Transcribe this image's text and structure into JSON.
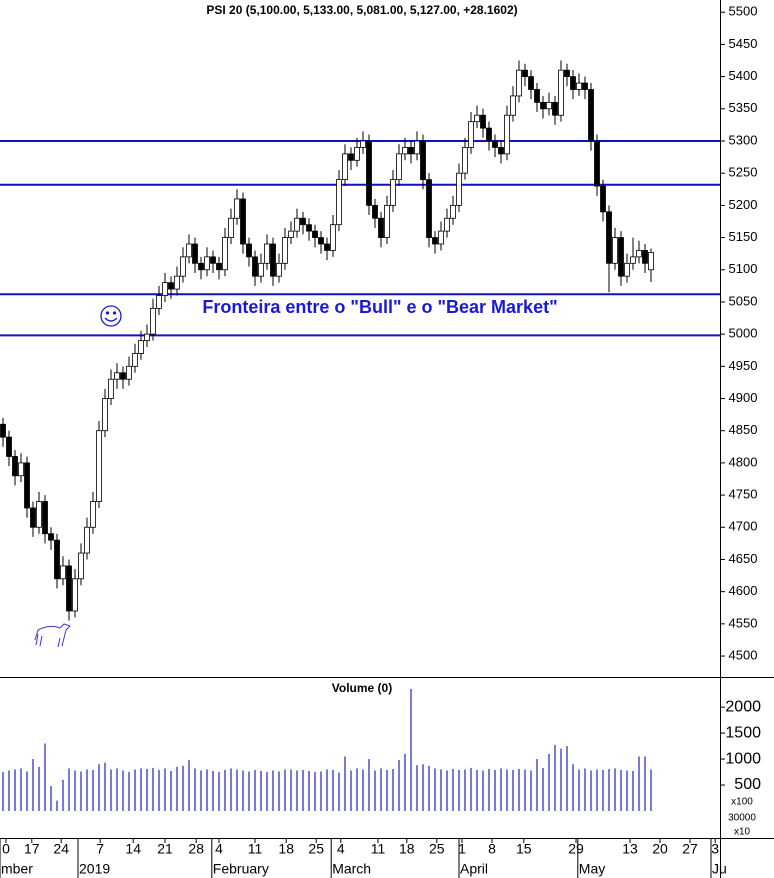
{
  "chart_data": {
    "type": "candlestick",
    "title": "PSI 20 (5,100.00, 5,133.00, 5,081.00, 5,127.00, +28.1602)",
    "volume_title": "Volume (0)",
    "annotation": "Fronteira entre o \"Bull\" e o \"Bear Market\"",
    "volume_unit": "x100",
    "axis_notes": [
      "30000",
      "x10"
    ],
    "ylim": [
      4469,
      5519
    ],
    "yticks": [
      4500,
      4550,
      4600,
      4650,
      4700,
      4750,
      4800,
      4850,
      4900,
      4950,
      5000,
      5050,
      5100,
      5150,
      5200,
      5250,
      5300,
      5350,
      5400,
      5450,
      5500
    ],
    "volume_ylim": [
      0,
      2580
    ],
    "volume_yticks": [
      500,
      1000,
      1500,
      2000
    ],
    "xlim": [
      -0.5,
      119.5
    ],
    "xticks": [
      {
        "value": 0.5,
        "label": "0"
      },
      {
        "value": 4.8,
        "label": "17"
      },
      {
        "value": 9.7,
        "label": "24"
      },
      {
        "value": 16.2,
        "label": "7"
      },
      {
        "value": 21.7,
        "label": "14"
      },
      {
        "value": 27,
        "label": "21"
      },
      {
        "value": 32.2,
        "label": "28"
      },
      {
        "value": 36,
        "label": "4"
      },
      {
        "value": 42,
        "label": "11"
      },
      {
        "value": 47.2,
        "label": "18"
      },
      {
        "value": 52.2,
        "label": "25"
      },
      {
        "value": 56.3,
        "label": "4"
      },
      {
        "value": 62.5,
        "label": "11"
      },
      {
        "value": 67.3,
        "label": "18"
      },
      {
        "value": 72.3,
        "label": "25"
      },
      {
        "value": 76.5,
        "label": "1"
      },
      {
        "value": 81.5,
        "label": "8"
      },
      {
        "value": 86.8,
        "label": "15"
      },
      {
        "value": 95.5,
        "label": "29"
      },
      {
        "value": 104.5,
        "label": "13"
      },
      {
        "value": 109.5,
        "label": "20"
      },
      {
        "value": 114.5,
        "label": "27"
      },
      {
        "value": 118.7,
        "label": "3"
      }
    ],
    "month_labels": [
      {
        "value": -0.5,
        "label": "mber"
      },
      {
        "value": 12.5,
        "label": "2019"
      },
      {
        "value": 34.8,
        "label": "February"
      },
      {
        "value": 54.7,
        "label": "March"
      },
      {
        "value": 76,
        "label": "April"
      },
      {
        "value": 95.8,
        "label": "May"
      },
      {
        "value": 118,
        "label": "Ju"
      }
    ],
    "hlines": [
      5300,
      5232,
      5062,
      4998
    ],
    "hline_color": "#1010c8",
    "up_color": "#ffffff",
    "down_color": "#000000",
    "volume_color": "#2020c0",
    "ohlc": [
      [
        4860,
        4870,
        4825,
        4840
      ],
      [
        4840,
        4850,
        4795,
        4810
      ],
      [
        4810,
        4820,
        4765,
        4780
      ],
      [
        4780,
        4815,
        4770,
        4800
      ],
      [
        4800,
        4810,
        4715,
        4730
      ],
      [
        4730,
        4740,
        4685,
        4700
      ],
      [
        4700,
        4755,
        4690,
        4740
      ],
      [
        4740,
        4750,
        4675,
        4690
      ],
      [
        4690,
        4700,
        4665,
        4680
      ],
      [
        4680,
        4690,
        4605,
        4620
      ],
      [
        4620,
        4655,
        4610,
        4640
      ],
      [
        4640,
        4650,
        4555,
        4570
      ],
      [
        4570,
        4635,
        4560,
        4620
      ],
      [
        4620,
        4675,
        4610,
        4660
      ],
      [
        4660,
        4715,
        4650,
        4700
      ],
      [
        4700,
        4755,
        4690,
        4740
      ],
      [
        4740,
        4865,
        4730,
        4850
      ],
      [
        4850,
        4915,
        4840,
        4900
      ],
      [
        4900,
        4945,
        4890,
        4930
      ],
      [
        4930,
        4955,
        4915,
        4940
      ],
      [
        4940,
        4950,
        4915,
        4930
      ],
      [
        4930,
        4965,
        4920,
        4950
      ],
      [
        4950,
        4985,
        4940,
        4970
      ],
      [
        4970,
        5005,
        4960,
        4990
      ],
      [
        4990,
        5015,
        4980,
        5000
      ],
      [
        5000,
        5055,
        4990,
        5040
      ],
      [
        5040,
        5075,
        5030,
        5060
      ],
      [
        5060,
        5095,
        5050,
        5080
      ],
      [
        5080,
        5090,
        5055,
        5070
      ],
      [
        5070,
        5105,
        5060,
        5090
      ],
      [
        5090,
        5135,
        5080,
        5120
      ],
      [
        5120,
        5155,
        5110,
        5140
      ],
      [
        5140,
        5150,
        5095,
        5110
      ],
      [
        5110,
        5120,
        5085,
        5100
      ],
      [
        5100,
        5135,
        5090,
        5120
      ],
      [
        5120,
        5130,
        5095,
        5110
      ],
      [
        5110,
        5120,
        5085,
        5100
      ],
      [
        5100,
        5165,
        5090,
        5150
      ],
      [
        5150,
        5195,
        5140,
        5180
      ],
      [
        5180,
        5225,
        5170,
        5210
      ],
      [
        5210,
        5220,
        5125,
        5140
      ],
      [
        5140,
        5150,
        5105,
        5120
      ],
      [
        5120,
        5130,
        5075,
        5090
      ],
      [
        5090,
        5125,
        5080,
        5110
      ],
      [
        5110,
        5155,
        5100,
        5140
      ],
      [
        5140,
        5150,
        5075,
        5090
      ],
      [
        5090,
        5125,
        5080,
        5110
      ],
      [
        5110,
        5165,
        5100,
        5150
      ],
      [
        5150,
        5175,
        5140,
        5160
      ],
      [
        5160,
        5195,
        5150,
        5180
      ],
      [
        5180,
        5190,
        5155,
        5170
      ],
      [
        5170,
        5180,
        5145,
        5160
      ],
      [
        5160,
        5170,
        5135,
        5150
      ],
      [
        5150,
        5160,
        5125,
        5140
      ],
      [
        5140,
        5150,
        5115,
        5130
      ],
      [
        5130,
        5185,
        5120,
        5170
      ],
      [
        5170,
        5255,
        5160,
        5240
      ],
      [
        5240,
        5295,
        5230,
        5280
      ],
      [
        5280,
        5290,
        5255,
        5270
      ],
      [
        5270,
        5305,
        5260,
        5290
      ],
      [
        5290,
        5315,
        5280,
        5300
      ],
      [
        5300,
        5310,
        5185,
        5200
      ],
      [
        5200,
        5210,
        5165,
        5180
      ],
      [
        5180,
        5190,
        5135,
        5150
      ],
      [
        5150,
        5215,
        5140,
        5200
      ],
      [
        5200,
        5255,
        5190,
        5240
      ],
      [
        5240,
        5295,
        5230,
        5280
      ],
      [
        5280,
        5305,
        5270,
        5290
      ],
      [
        5290,
        5300,
        5265,
        5280
      ],
      [
        5280,
        5315,
        5270,
        5300
      ],
      [
        5300,
        5310,
        5225,
        5240
      ],
      [
        5240,
        5250,
        5135,
        5150
      ],
      [
        5150,
        5160,
        5125,
        5140
      ],
      [
        5140,
        5175,
        5130,
        5160
      ],
      [
        5160,
        5195,
        5150,
        5180
      ],
      [
        5180,
        5215,
        5170,
        5200
      ],
      [
        5200,
        5265,
        5190,
        5250
      ],
      [
        5250,
        5305,
        5240,
        5290
      ],
      [
        5290,
        5345,
        5280,
        5330
      ],
      [
        5330,
        5355,
        5320,
        5340
      ],
      [
        5340,
        5350,
        5305,
        5320
      ],
      [
        5320,
        5330,
        5285,
        5300
      ],
      [
        5300,
        5310,
        5275,
        5290
      ],
      [
        5290,
        5300,
        5265,
        5280
      ],
      [
        5280,
        5355,
        5270,
        5340
      ],
      [
        5340,
        5385,
        5330,
        5370
      ],
      [
        5370,
        5425,
        5360,
        5410
      ],
      [
        5410,
        5420,
        5385,
        5400
      ],
      [
        5400,
        5410,
        5365,
        5380
      ],
      [
        5380,
        5390,
        5345,
        5360
      ],
      [
        5360,
        5370,
        5335,
        5350
      ],
      [
        5350,
        5375,
        5340,
        5360
      ],
      [
        5360,
        5370,
        5325,
        5340
      ],
      [
        5340,
        5425,
        5330,
        5410
      ],
      [
        5410,
        5420,
        5385,
        5400
      ],
      [
        5400,
        5410,
        5365,
        5380
      ],
      [
        5380,
        5405,
        5370,
        5390
      ],
      [
        5390,
        5400,
        5365,
        5380
      ],
      [
        5380,
        5390,
        5285,
        5300
      ],
      [
        5300,
        5310,
        5215,
        5230
      ],
      [
        5230,
        5240,
        5175,
        5190
      ],
      [
        5190,
        5200,
        5065,
        5110
      ],
      [
        5110,
        5165,
        5100,
        5150
      ],
      [
        5150,
        5160,
        5075,
        5090
      ],
      [
        5090,
        5125,
        5080,
        5110
      ],
      [
        5110,
        5150,
        5100,
        5120
      ],
      [
        5120,
        5145,
        5110,
        5130
      ],
      [
        5130,
        5140,
        5095,
        5110
      ],
      [
        5100,
        5133,
        5081,
        5127
      ]
    ],
    "volume": [
      750,
      780,
      800,
      820,
      760,
      1000,
      850,
      1300,
      480,
      200,
      600,
      820,
      780,
      760,
      800,
      790,
      900,
      930,
      800,
      820,
      780,
      750,
      800,
      820,
      810,
      830,
      790,
      820,
      770,
      850,
      870,
      980,
      820,
      780,
      800,
      770,
      750,
      790,
      820,
      800,
      780,
      760,
      790,
      770,
      750,
      780,
      760,
      800,
      800,
      780,
      790,
      770,
      750,
      760,
      800,
      790,
      740,
      1050,
      780,
      820,
      800,
      1000,
      780,
      820,
      790,
      810,
      980,
      1100,
      2350,
      880,
      900,
      870,
      820,
      800,
      780,
      810,
      790,
      800,
      830,
      790,
      780,
      810,
      790,
      820,
      800,
      790,
      810,
      800,
      780,
      1000,
      830,
      1100,
      1270,
      1200,
      1250,
      900,
      800,
      820,
      780,
      800,
      790,
      810,
      820,
      790,
      780,
      770,
      1050,
      1050,
      800
    ]
  }
}
